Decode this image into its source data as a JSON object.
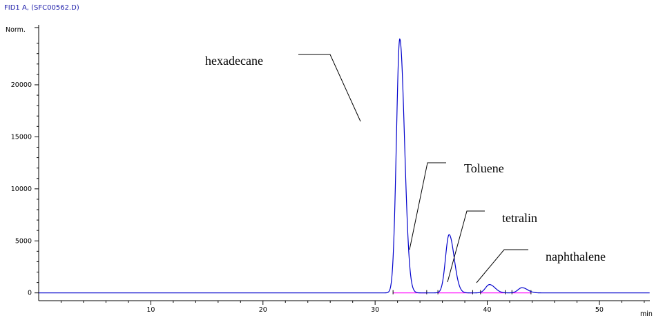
{
  "header": {
    "title": "FID1 A, (SFC00562.D)"
  },
  "chart_data": {
    "type": "line",
    "title": "FID1 A, (SFC00562.D)",
    "ylabel": "Norm.",
    "xlabel": "min",
    "xlim": [
      0,
      54.5
    ],
    "ylim": [
      -750,
      25500
    ],
    "x_ticks": [
      "10",
      "20",
      "30",
      "40",
      "50"
    ],
    "y_ticks": [
      "0",
      "5000",
      "10000",
      "15000",
      "20000"
    ],
    "grid": false,
    "peaks": [
      {
        "name": "hexadecane",
        "rt": 32.2,
        "height": 24400,
        "sigma": 0.3
      },
      {
        "name": "Toluene",
        "rt": 36.6,
        "height": 5600,
        "sigma": 0.32
      },
      {
        "name": "tetralin",
        "rt": 40.2,
        "height": 800,
        "sigma": 0.35
      },
      {
        "name": "naphthalene",
        "rt": 43.1,
        "height": 500,
        "sigma": 0.35
      }
    ],
    "annotations": [
      {
        "text": "hexadecane"
      },
      {
        "text": "Toluene"
      },
      {
        "text": "tetralin"
      },
      {
        "text": "naphthalene"
      }
    ],
    "colors": {
      "signal": "#0000cc",
      "baseline": "#ff00ff",
      "axis": "#000000",
      "header": "#1a1aa8"
    }
  }
}
